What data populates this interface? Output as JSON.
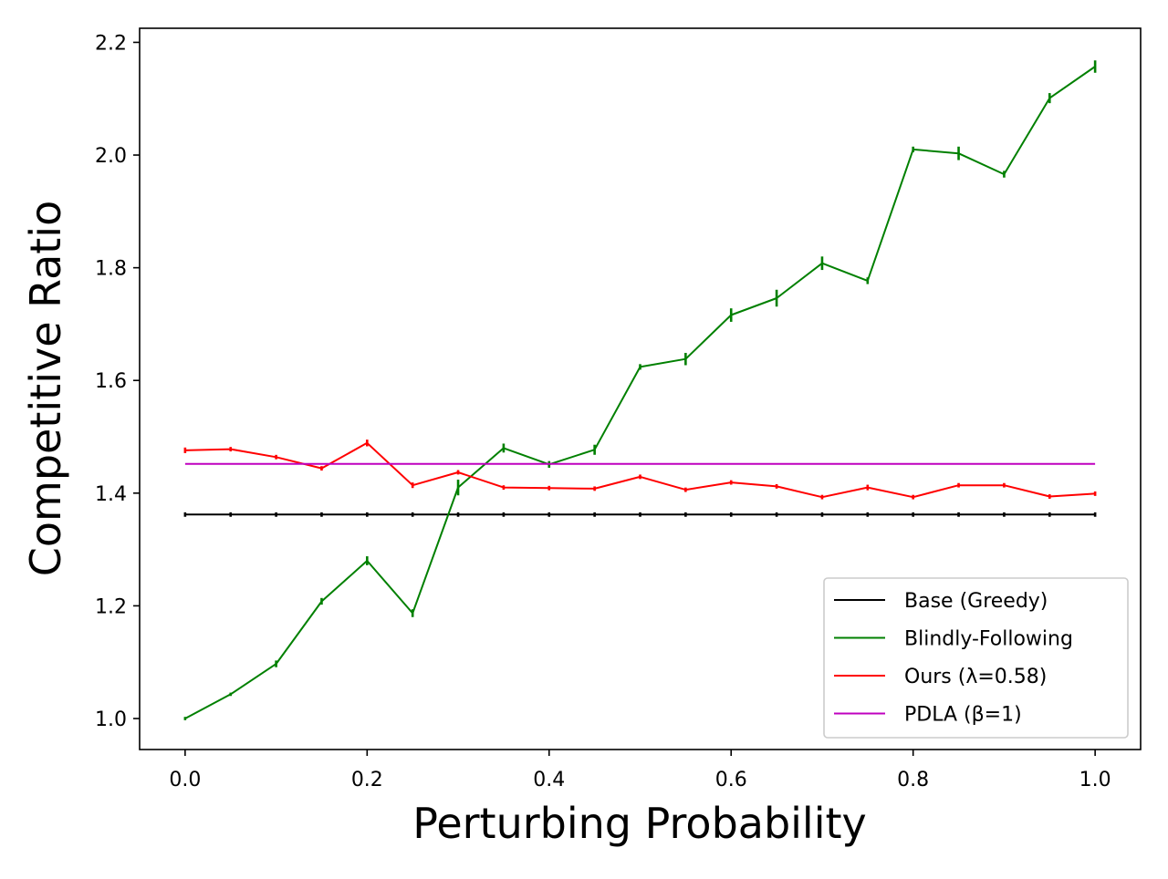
{
  "chart_data": {
    "type": "line",
    "title": "",
    "xlabel": "Perturbing Probability",
    "ylabel": "Competitive Ratio",
    "xlim": [
      -0.05,
      1.05
    ],
    "ylim": [
      0.945,
      2.225
    ],
    "xticks": [
      0.0,
      0.2,
      0.4,
      0.6,
      0.8,
      1.0
    ],
    "xtick_labels": [
      "0.0",
      "0.2",
      "0.4",
      "0.6",
      "0.8",
      "1.0"
    ],
    "yticks": [
      1.0,
      1.2,
      1.4,
      1.6,
      1.8,
      2.0,
      2.2
    ],
    "ytick_labels": [
      "1.0",
      "1.2",
      "1.4",
      "1.6",
      "1.8",
      "2.0",
      "2.2"
    ],
    "grid": false,
    "legend_position": "lower-right",
    "x": [
      0.0,
      0.05,
      0.1,
      0.15,
      0.2,
      0.25,
      0.3,
      0.35,
      0.4,
      0.45,
      0.5,
      0.55,
      0.6,
      0.65,
      0.7,
      0.75,
      0.8,
      0.85,
      0.9,
      0.95,
      1.0
    ],
    "series": [
      {
        "name": "Base (Greedy)",
        "color": "#000000",
        "values": [
          1.362,
          1.362,
          1.362,
          1.362,
          1.362,
          1.362,
          1.362,
          1.362,
          1.362,
          1.362,
          1.362,
          1.362,
          1.362,
          1.362,
          1.362,
          1.362,
          1.362,
          1.362,
          1.362,
          1.362,
          1.362
        ],
        "errors": [
          0.002,
          0.002,
          0.002,
          0.002,
          0.002,
          0.002,
          0.002,
          0.002,
          0.002,
          0.002,
          0.002,
          0.002,
          0.002,
          0.002,
          0.002,
          0.002,
          0.002,
          0.002,
          0.002,
          0.002,
          0.002
        ]
      },
      {
        "name": "Blindly-Following",
        "color": "#008000",
        "values": [
          1.0,
          1.043,
          1.097,
          1.208,
          1.28,
          1.187,
          1.41,
          1.48,
          1.451,
          1.477,
          1.624,
          1.638,
          1.716,
          1.746,
          1.808,
          1.777,
          2.01,
          2.003,
          1.966,
          2.101,
          2.157
        ],
        "errors": [
          0.001,
          0.001,
          0.004,
          0.004,
          0.006,
          0.005,
          0.012,
          0.006,
          0.004,
          0.007,
          0.003,
          0.009,
          0.01,
          0.013,
          0.01,
          0.004,
          0.003,
          0.01,
          0.004,
          0.007,
          0.009
        ]
      },
      {
        "name": "Ours (λ=0.58)",
        "color": "#ff0000",
        "values": [
          1.476,
          1.478,
          1.464,
          1.444,
          1.489,
          1.414,
          1.437,
          1.41,
          1.409,
          1.408,
          1.429,
          1.406,
          1.419,
          1.412,
          1.393,
          1.41,
          1.393,
          1.414,
          1.414,
          1.394,
          1.399
        ],
        "errors": [
          0.003,
          0.002,
          0.002,
          0.002,
          0.004,
          0.003,
          0.002,
          0.002,
          0.002,
          0.002,
          0.002,
          0.002,
          0.002,
          0.002,
          0.002,
          0.003,
          0.002,
          0.002,
          0.002,
          0.002,
          0.002
        ]
      },
      {
        "name": "PDLA (β=1)",
        "color": "#bf00bf",
        "values": [
          1.452,
          1.452,
          1.452,
          1.452,
          1.452,
          1.452,
          1.452,
          1.452,
          1.452,
          1.452,
          1.452,
          1.452,
          1.452,
          1.452,
          1.452,
          1.452,
          1.452,
          1.452,
          1.452,
          1.452,
          1.452
        ],
        "errors": [
          0,
          0,
          0,
          0,
          0,
          0,
          0,
          0,
          0,
          0,
          0,
          0,
          0,
          0,
          0,
          0,
          0,
          0,
          0,
          0,
          0
        ]
      }
    ]
  }
}
